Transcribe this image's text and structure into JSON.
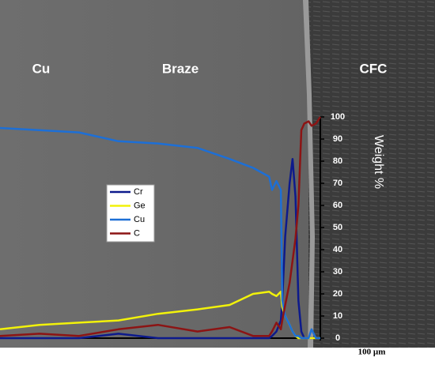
{
  "chart_data": {
    "type": "line",
    "annotations": [
      "Cu",
      "Braze",
      "CFC"
    ],
    "y_label": "Weight %",
    "scale_bar": "100 µm",
    "x": [
      0,
      27,
      54,
      81,
      108,
      135,
      157,
      173,
      184,
      186,
      189,
      192,
      193,
      195,
      198,
      200,
      202,
      204,
      206,
      208,
      211,
      213,
      216,
      219
    ],
    "xlim": [
      0,
      219
    ],
    "ylim": [
      0,
      100
    ],
    "yticks": [
      0,
      10,
      20,
      30,
      40,
      50,
      60,
      70,
      80,
      90,
      100
    ],
    "y_axis_side": "right",
    "legend": "center-left",
    "series": [
      {
        "name": "Cr",
        "color": "#0d1a8c",
        "values": [
          0,
          0,
          0,
          2,
          0,
          0,
          0,
          0,
          0,
          1,
          3,
          8,
          17,
          46,
          70,
          81,
          64,
          17,
          3,
          0,
          0,
          0,
          0,
          0
        ]
      },
      {
        "name": "Ge",
        "color": "#f2f20a",
        "values": [
          4,
          6,
          7,
          8,
          11,
          13,
          15,
          20,
          21,
          20,
          19,
          21,
          14,
          10,
          6,
          3,
          1,
          0,
          0,
          0,
          0,
          0,
          0,
          0
        ]
      },
      {
        "name": "Cu",
        "color": "#1d6fd6",
        "values": [
          95,
          94,
          93,
          89,
          88,
          86,
          81,
          77,
          73,
          67,
          71,
          67,
          17,
          10,
          6,
          3,
          1,
          1,
          0,
          0,
          0,
          4,
          0,
          0
        ]
      },
      {
        "name": "C",
        "color": "#8c1414",
        "values": [
          1,
          2,
          1,
          4,
          6,
          3,
          5,
          1,
          1,
          3,
          7,
          4,
          8,
          15,
          25,
          35,
          45,
          60,
          94,
          97,
          98,
          96,
          97,
          100
        ]
      }
    ]
  }
}
